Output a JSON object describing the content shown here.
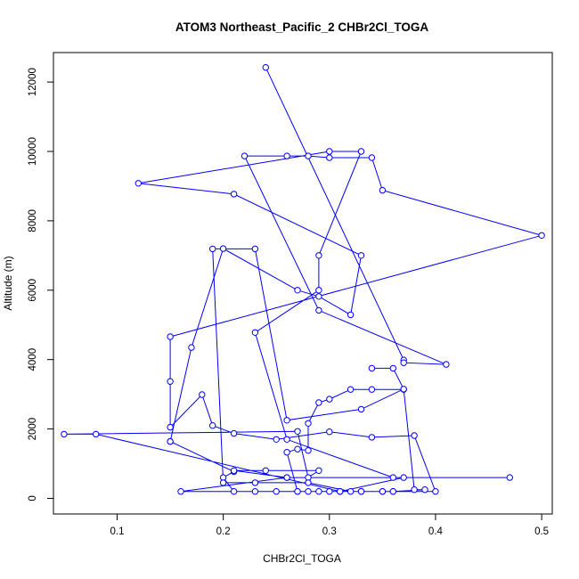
{
  "chart_data": {
    "type": "scatter",
    "title": "ATOM3 Northeast_Pacific_2 CHBr2Cl_TOGA",
    "xlabel": "CHBr2Cl_TOGA",
    "ylabel": "Altitude (m)",
    "xlim": [
      0.04,
      0.51
    ],
    "ylim": [
      -450,
      12850
    ],
    "xticks": [
      0.1,
      0.2,
      0.3,
      0.4,
      0.5
    ],
    "xtick_labels": [
      "0.1",
      "0.2",
      "0.3",
      "0.4",
      "0.5"
    ],
    "yticks": [
      0,
      2000,
      4000,
      6000,
      8000,
      10000,
      12000
    ],
    "ytick_labels": [
      "0",
      "2000",
      "4000",
      "6000",
      "8000",
      "10000",
      "12000"
    ],
    "grid": false,
    "legend": "none",
    "series_color": "#0000ff",
    "marker": "open-circle",
    "connected": true,
    "x": [
      0.24,
      0.37,
      0.37,
      0.41,
      0.29,
      0.22,
      0.26,
      0.28,
      0.3,
      0.34,
      0.35,
      0.5,
      0.15,
      0.15,
      0.15,
      0.18,
      0.19,
      0.21,
      0.25,
      0.3,
      0.34,
      0.38,
      0.4,
      0.36,
      0.33,
      0.31,
      0.3,
      0.28,
      0.27,
      0.26,
      0.27,
      0.28,
      0.28,
      0.29,
      0.3,
      0.32,
      0.34,
      0.37,
      0.38,
      0.39,
      0.36,
      0.35,
      0.33,
      0.31,
      0.29,
      0.27,
      0.25,
      0.23,
      0.21,
      0.2,
      0.21,
      0.15,
      0.15,
      0.17,
      0.2,
      0.27,
      0.29,
      0.32,
      0.33,
      0.21,
      0.12,
      0.3,
      0.33,
      0.29,
      0.29,
      0.23,
      0.26,
      0.36,
      0.37,
      0.31,
      0.08,
      0.05,
      0.27,
      0.28,
      0.29,
      0.24,
      0.21,
      0.26,
      0.47,
      0.26,
      0.16,
      0.35,
      0.32,
      0.28,
      0.23,
      0.2,
      0.19,
      0.23,
      0.26,
      0.33,
      0.37,
      0.36,
      0.34
    ],
    "y": [
      12420,
      3990,
      3910,
      3860,
      5420,
      9870,
      9870,
      9870,
      9820,
      9820,
      8880,
      7580,
      4660,
      3370,
      2050,
      2990,
      2100,
      1870,
      1700,
      1920,
      1760,
      1810,
      200,
      200,
      200,
      200,
      200,
      200,
      200,
      1330,
      1420,
      1380,
      2160,
      2760,
      2860,
      3140,
      3140,
      3140,
      250,
      250,
      200,
      200,
      200,
      200,
      200,
      200,
      200,
      200,
      200,
      600,
      770,
      1640,
      1640,
      4350,
      7200,
      6000,
      5820,
      5290,
      7000,
      8770,
      9080,
      10000,
      10000,
      7000,
      6000,
      4780,
      1700,
      600,
      600,
      200,
      1850,
      1850,
      1930,
      600,
      800,
      800,
      800,
      600,
      600,
      600,
      200,
      200,
      200,
      450,
      450,
      450,
      7190,
      7190,
      2250,
      2570,
      3150,
      3750,
      3750
    ]
  }
}
